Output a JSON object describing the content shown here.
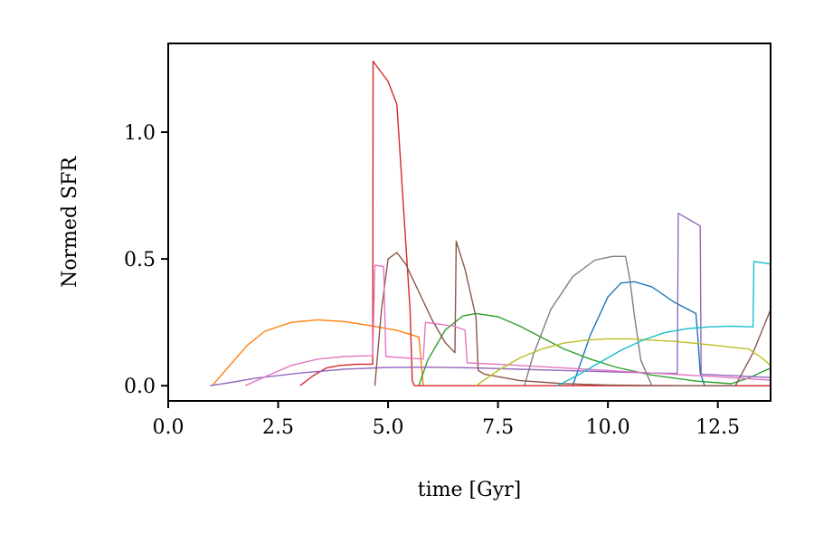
{
  "chart_data": {
    "type": "line",
    "title": "",
    "xlabel": "time [Gyr]",
    "ylabel": "Normed SFR",
    "xlim": [
      0,
      13.7
    ],
    "ylim": [
      -0.06,
      1.35
    ],
    "xticks": [
      0.0,
      2.5,
      5.0,
      7.5,
      10.0,
      12.5
    ],
    "xtick_labels": [
      "0.0",
      "2.5",
      "5.0",
      "7.5",
      "10.0",
      "12.5"
    ],
    "yticks": [
      0.0,
      0.5,
      1.0
    ],
    "ytick_labels": [
      "0.0",
      "0.5",
      "1.0"
    ],
    "grid": false,
    "legend": "none",
    "series": [
      {
        "name": "series-blue",
        "color": "#1f77b4",
        "x": [
          9.2,
          9.6,
          10.0,
          10.3,
          10.6,
          11.0,
          11.5,
          12.0,
          12.05,
          12.1,
          12.2,
          13.7
        ],
        "y": [
          0.0,
          0.2,
          0.35,
          0.405,
          0.41,
          0.39,
          0.33,
          0.285,
          0.18,
          0.05,
          0.0,
          0.0
        ]
      },
      {
        "name": "series-orange",
        "color": "#ff7f0e",
        "x": [
          1.0,
          1.5,
          1.8,
          2.2,
          2.8,
          3.4,
          4.0,
          4.6,
          5.2,
          5.7,
          5.75,
          5.8
        ],
        "y": [
          0.0,
          0.1,
          0.16,
          0.215,
          0.25,
          0.26,
          0.253,
          0.237,
          0.218,
          0.192,
          0.1,
          0.0
        ]
      },
      {
        "name": "series-green",
        "color": "#2ca02c",
        "x": [
          5.7,
          5.9,
          6.3,
          6.7,
          7.0,
          7.5,
          8.0,
          8.5,
          9.0,
          9.6,
          10.2,
          11.0,
          12.0,
          12.8,
          13.2,
          13.7
        ],
        "y": [
          0.0,
          0.1,
          0.22,
          0.275,
          0.285,
          0.272,
          0.235,
          0.19,
          0.145,
          0.105,
          0.072,
          0.042,
          0.018,
          0.008,
          0.03,
          0.07
        ]
      },
      {
        "name": "series-red",
        "color": "#d62728",
        "x": [
          3.0,
          3.3,
          3.6,
          3.9,
          4.3,
          4.65,
          4.66,
          4.7,
          5.0,
          5.2,
          5.5,
          5.55,
          5.6,
          5.75,
          13.7
        ],
        "y": [
          0.0,
          0.04,
          0.07,
          0.08,
          0.085,
          0.085,
          1.28,
          1.27,
          1.2,
          1.11,
          0.3,
          0.02,
          0.0,
          0.0,
          0.0
        ]
      },
      {
        "name": "series-purple",
        "color": "#9467bd",
        "x": [
          0.95,
          1.5,
          2.0,
          3.0,
          4.0,
          5.0,
          6.0,
          7.0,
          8.0,
          9.0,
          10.0,
          11.0,
          11.58,
          11.6,
          12.1,
          12.12,
          13.0,
          13.7
        ],
        "y": [
          0.0,
          0.015,
          0.03,
          0.05,
          0.065,
          0.072,
          0.073,
          0.07,
          0.065,
          0.06,
          0.055,
          0.05,
          0.048,
          0.68,
          0.63,
          0.045,
          0.038,
          0.032
        ]
      },
      {
        "name": "series-brown",
        "color": "#8c564b",
        "x": [
          4.7,
          4.85,
          5.0,
          5.2,
          5.4,
          5.7,
          6.0,
          6.3,
          6.52,
          6.55,
          6.75,
          7.0,
          7.05,
          7.2,
          8.0,
          9.0,
          10.0,
          11.0,
          12.0,
          12.9,
          13.3,
          13.7
        ],
        "y": [
          0.0,
          0.3,
          0.5,
          0.525,
          0.48,
          0.37,
          0.26,
          0.17,
          0.13,
          0.57,
          0.46,
          0.27,
          0.06,
          0.045,
          0.02,
          0.008,
          0.003,
          0.001,
          0.0,
          0.0,
          0.13,
          0.3
        ]
      },
      {
        "name": "series-pink",
        "color": "#e377c2",
        "x": [
          1.75,
          2.2,
          2.8,
          3.4,
          4.0,
          4.6,
          4.65,
          4.7,
          4.9,
          4.95,
          5.8,
          5.85,
          6.5,
          6.75,
          6.8,
          7.5,
          8.5,
          9.5,
          10.5,
          11.5,
          12.5,
          13.7
        ],
        "y": [
          0.0,
          0.035,
          0.08,
          0.105,
          0.115,
          0.118,
          0.12,
          0.475,
          0.47,
          0.115,
          0.105,
          0.25,
          0.235,
          0.22,
          0.09,
          0.085,
          0.075,
          0.065,
          0.055,
          0.045,
          0.035,
          0.022
        ]
      },
      {
        "name": "series-gray",
        "color": "#7f7f7f",
        "x": [
          8.1,
          8.3,
          8.7,
          9.2,
          9.7,
          10.1,
          10.4,
          10.5,
          10.6,
          10.75,
          11.0
        ],
        "y": [
          0.0,
          0.12,
          0.3,
          0.43,
          0.495,
          0.51,
          0.51,
          0.42,
          0.28,
          0.1,
          0.0
        ]
      },
      {
        "name": "series-olive",
        "color": "#bcbd22",
        "x": [
          7.0,
          7.5,
          8.0,
          8.5,
          9.0,
          9.5,
          10.0,
          10.5,
          11.0,
          11.5,
          12.0,
          12.5,
          13.0,
          13.2,
          13.5,
          13.7
        ],
        "y": [
          0.0,
          0.06,
          0.11,
          0.145,
          0.168,
          0.18,
          0.185,
          0.185,
          0.18,
          0.175,
          0.167,
          0.158,
          0.148,
          0.145,
          0.11,
          0.08
        ]
      },
      {
        "name": "series-cyan",
        "color": "#17becf",
        "x": [
          8.85,
          9.3,
          9.8,
          10.3,
          10.8,
          11.3,
          11.8,
          12.3,
          12.8,
          13.3,
          13.32,
          13.7
        ],
        "y": [
          0.0,
          0.04,
          0.09,
          0.14,
          0.18,
          0.21,
          0.225,
          0.232,
          0.235,
          0.232,
          0.49,
          0.48
        ]
      }
    ]
  }
}
